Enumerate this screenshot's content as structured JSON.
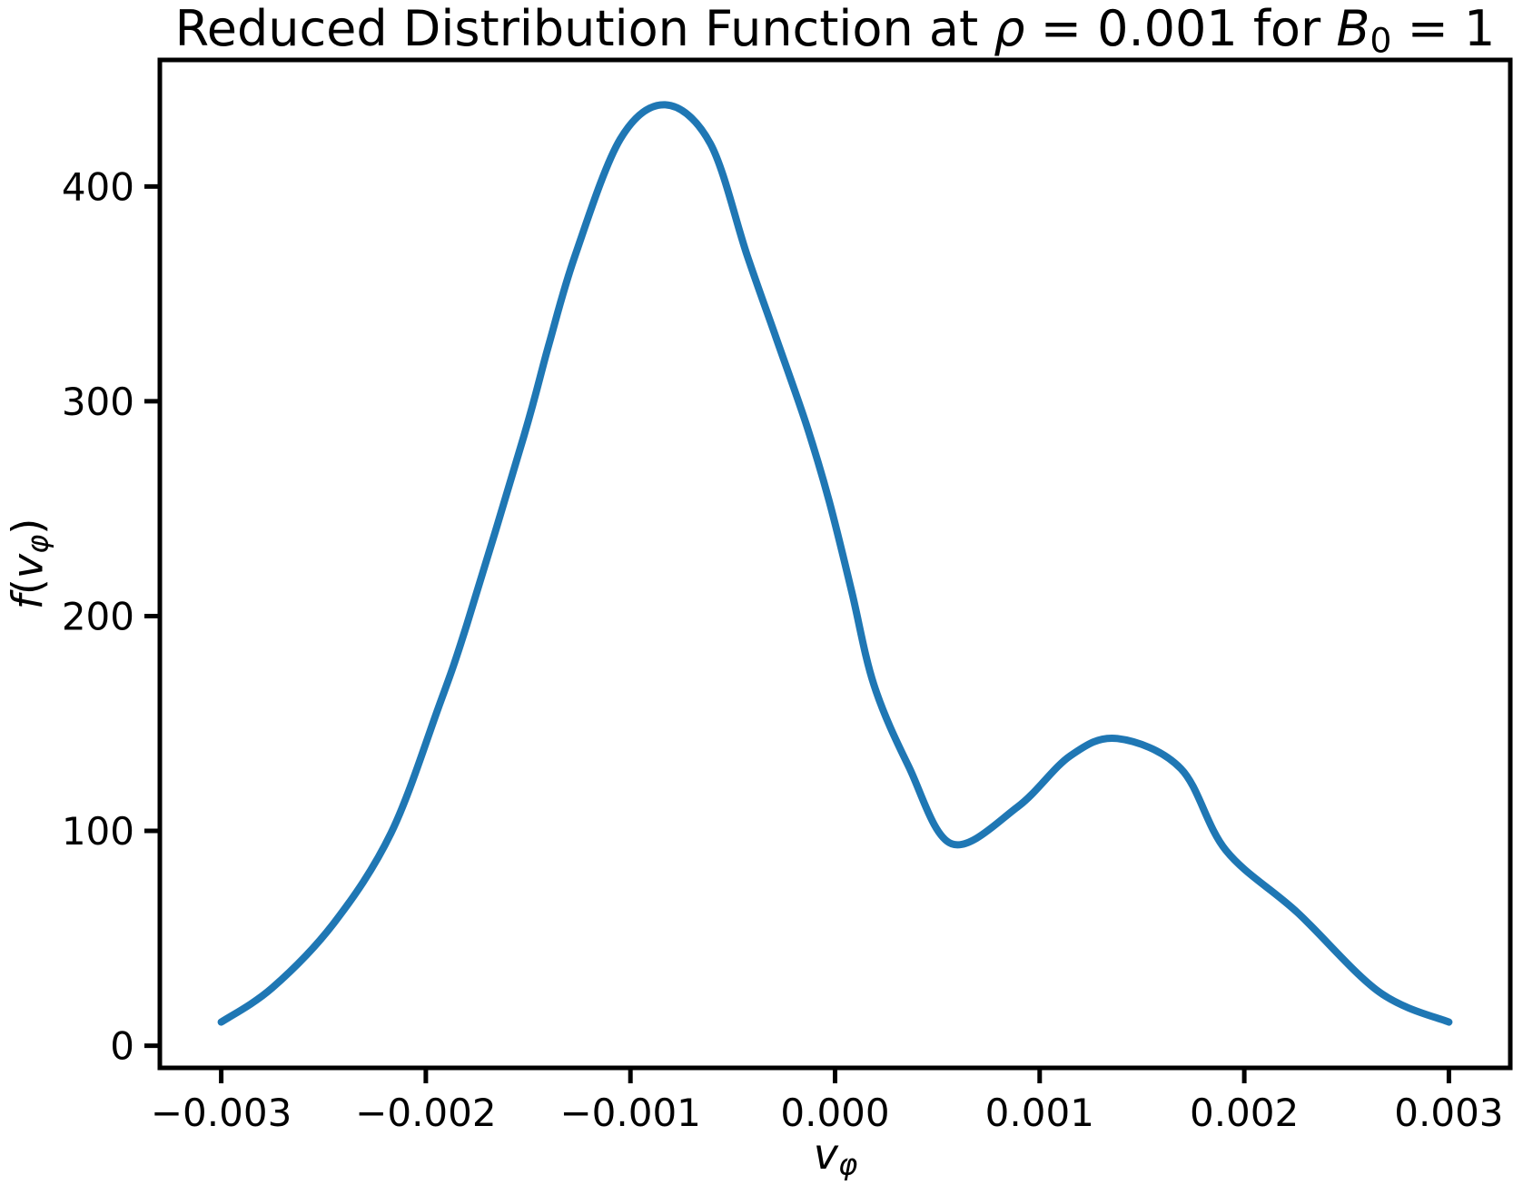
{
  "figure": {
    "title": {
      "part1": "Reduced Distribution Function at ",
      "rho": "ρ",
      "part2": " = 0.001 for ",
      "b_symbol": "B",
      "b_subscript": "0",
      "part3": " = 1"
    },
    "xlabel": {
      "symbol": "v",
      "subscript": "φ"
    },
    "ylabel": {
      "func": "f",
      "open_paren": "(",
      "symbol": "v",
      "subscript": "φ",
      "close_paren": ")"
    }
  },
  "chart_data": {
    "type": "line",
    "title": "Reduced Distribution Function at ρ = 0.001 for B₀ = 1",
    "xlabel": "v_φ",
    "ylabel": "f(v_φ)",
    "grid": false,
    "legend_position": "none",
    "background_color": "#ffffff",
    "axis_color": "#000000",
    "xlim": [
      -0.0033,
      0.0033
    ],
    "ylim": [
      -10.3,
      458.9
    ],
    "x_ticks": {
      "values": [
        -0.003,
        -0.002,
        -0.001,
        0.0,
        0.001,
        0.002,
        0.003
      ],
      "labels": [
        "−0.003",
        "−0.002",
        "−0.001",
        "0.000",
        "0.001",
        "0.002",
        "0.003"
      ]
    },
    "y_ticks": {
      "values": [
        0,
        100,
        200,
        300,
        400
      ],
      "labels": [
        "0",
        "100",
        "200",
        "300",
        "400"
      ]
    },
    "series": [
      {
        "name": "f(v_phi)",
        "color": "#1f77b4",
        "line_width": 8,
        "points": [
          [
            -0.003,
            11
          ],
          [
            -0.00275,
            27
          ],
          [
            -0.00245,
            57
          ],
          [
            -0.00217,
            99
          ],
          [
            -0.00194,
            157
          ],
          [
            -0.0018,
            196
          ],
          [
            -0.00152,
            284
          ],
          [
            -0.0014,
            326
          ],
          [
            -0.00127,
            368
          ],
          [
            -0.00105,
            422
          ],
          [
            -0.00083,
            438
          ],
          [
            -0.00061,
            420
          ],
          [
            -0.00043,
            368
          ],
          [
            -0.00029,
            330
          ],
          [
            -0.00014,
            289
          ],
          [
            -3e-05,
            254
          ],
          [
            8e-05,
            212
          ],
          [
            0.00019,
            168
          ],
          [
            0.00036,
            130
          ],
          [
            0.00057,
            94
          ],
          [
            0.00089,
            111
          ],
          [
            0.00115,
            135
          ],
          [
            0.00138,
            143
          ],
          [
            0.00169,
            129
          ],
          [
            0.00191,
            91
          ],
          [
            0.00226,
            62
          ],
          [
            0.00266,
            25
          ],
          [
            0.003,
            11
          ]
        ]
      }
    ]
  }
}
